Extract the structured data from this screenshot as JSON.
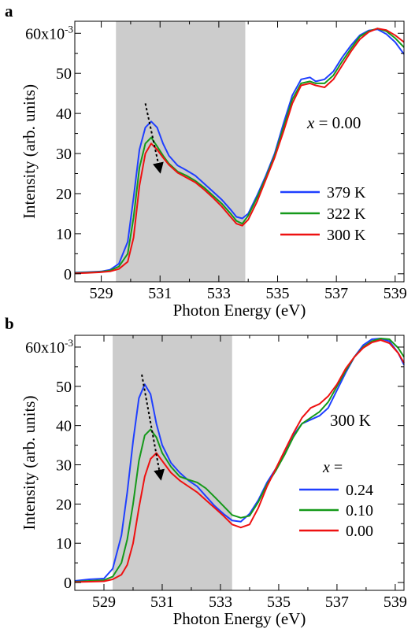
{
  "chart_data": [
    {
      "panel": "a",
      "type": "line",
      "xlabel": "Photon Energy (eV)",
      "ylabel": "Intensity (arb. units)",
      "xlim": [
        528.1,
        539.3
      ],
      "ylim": [
        -0.002,
        0.063
      ],
      "x_ticks": [
        529,
        531,
        533,
        535,
        537,
        539
      ],
      "x_tick_labels": [
        "529",
        "531",
        "533",
        "535",
        "537",
        "539"
      ],
      "y_ticks": [
        0,
        0.01,
        0.02,
        0.03,
        0.04,
        0.05,
        0.06
      ],
      "y_tick_labels": [
        "0",
        "10",
        "20",
        "30",
        "40",
        "50",
        "60x10"
      ],
      "y_exponent": "-3",
      "shaded_region": [
        529.5,
        533.9
      ],
      "annotation": "x = 0.00",
      "arrow": {
        "from": [
          530.5,
          0.0425
        ],
        "to": [
          531.0,
          0.0255
        ]
      },
      "legend": {
        "placement": "right"
      },
      "colors": {
        "379 K": "#1f3fff",
        "322 K": "#15991a",
        "300 K": "#ee1111",
        "shade": "#cccccc"
      },
      "series": [
        {
          "name": "379 K",
          "x": [
            528.1,
            528.5,
            529.0,
            529.3,
            529.6,
            529.9,
            530.1,
            530.3,
            530.5,
            530.7,
            530.9,
            531.1,
            531.3,
            531.6,
            531.9,
            532.2,
            532.5,
            532.8,
            533.1,
            533.4,
            533.6,
            533.8,
            534.0,
            534.3,
            534.6,
            534.9,
            535.2,
            535.5,
            535.8,
            536.1,
            536.3,
            536.6,
            536.9,
            537.2,
            537.5,
            537.8,
            538.1,
            538.4,
            538.7,
            539.0,
            539.3
          ],
          "values": [
            0.0003,
            0.0004,
            0.0006,
            0.001,
            0.0025,
            0.008,
            0.019,
            0.031,
            0.0365,
            0.038,
            0.0365,
            0.0325,
            0.0295,
            0.027,
            0.0258,
            0.0245,
            0.0225,
            0.0205,
            0.0185,
            0.016,
            0.0142,
            0.0138,
            0.015,
            0.0195,
            0.0245,
            0.03,
            0.0375,
            0.0445,
            0.0485,
            0.049,
            0.048,
            0.0485,
            0.0505,
            0.054,
            0.057,
            0.0595,
            0.0607,
            0.061,
            0.0598,
            0.0578,
            0.0548
          ]
        },
        {
          "name": "322 K",
          "x": [
            528.1,
            528.5,
            529.0,
            529.3,
            529.6,
            529.9,
            530.1,
            530.3,
            530.5,
            530.7,
            530.9,
            531.1,
            531.3,
            531.6,
            531.9,
            532.2,
            532.5,
            532.8,
            533.1,
            533.4,
            533.6,
            533.8,
            534.0,
            534.3,
            534.6,
            534.9,
            535.2,
            535.5,
            535.8,
            536.1,
            536.3,
            536.6,
            536.9,
            537.2,
            537.5,
            537.8,
            538.1,
            538.4,
            538.7,
            539.0,
            539.3
          ],
          "values": [
            0.0002,
            0.0003,
            0.0005,
            0.0008,
            0.0018,
            0.005,
            0.014,
            0.0265,
            0.0325,
            0.034,
            0.0318,
            0.0295,
            0.0275,
            0.0255,
            0.0245,
            0.0232,
            0.0215,
            0.0195,
            0.0175,
            0.015,
            0.0132,
            0.0125,
            0.0145,
            0.019,
            0.024,
            0.0295,
            0.0365,
            0.0435,
            0.0475,
            0.048,
            0.0475,
            0.0475,
            0.0495,
            0.053,
            0.0562,
            0.0592,
            0.0605,
            0.0612,
            0.0605,
            0.0588,
            0.0565
          ]
        },
        {
          "name": "300 K",
          "x": [
            528.1,
            528.5,
            529.0,
            529.3,
            529.6,
            529.9,
            530.1,
            530.3,
            530.5,
            530.7,
            530.9,
            531.1,
            531.3,
            531.6,
            531.9,
            532.2,
            532.5,
            532.8,
            533.1,
            533.4,
            533.6,
            533.8,
            534.0,
            534.3,
            534.6,
            534.9,
            535.2,
            535.5,
            535.8,
            536.1,
            536.3,
            536.6,
            536.9,
            537.2,
            537.5,
            537.8,
            538.1,
            538.4,
            538.7,
            539.0,
            539.3
          ],
          "values": [
            0.0001,
            0.0002,
            0.0004,
            0.0006,
            0.0012,
            0.003,
            0.009,
            0.022,
            0.03,
            0.0325,
            0.031,
            0.029,
            0.0272,
            0.0252,
            0.024,
            0.0228,
            0.021,
            0.019,
            0.0168,
            0.0142,
            0.0125,
            0.012,
            0.0135,
            0.018,
            0.0235,
            0.029,
            0.0355,
            0.0425,
            0.047,
            0.0475,
            0.047,
            0.0465,
            0.0485,
            0.052,
            0.0555,
            0.0585,
            0.0603,
            0.0612,
            0.0608,
            0.0595,
            0.0578
          ]
        }
      ]
    },
    {
      "panel": "b",
      "type": "line",
      "xlabel": "Photon Energy (eV)",
      "ylabel": "Intensity (arb. units)",
      "xlim": [
        528.0,
        539.3
      ],
      "ylim": [
        -0.002,
        0.063
      ],
      "x_ticks": [
        529,
        531,
        533,
        535,
        537,
        539
      ],
      "x_tick_labels": [
        "529",
        "531",
        "533",
        "535",
        "537",
        "539"
      ],
      "y_ticks": [
        0,
        0.01,
        0.02,
        0.03,
        0.04,
        0.05,
        0.06
      ],
      "y_tick_labels": [
        "0",
        "10",
        "20",
        "30",
        "40",
        "50",
        "60x10"
      ],
      "y_exponent": "-3",
      "shaded_region": [
        529.3,
        533.4
      ],
      "annotation": "300 K",
      "legend": {
        "title": "x =",
        "placement": "right"
      },
      "arrow": {
        "from": [
          530.3,
          0.053
        ],
        "to": [
          530.95,
          0.0265
        ]
      },
      "colors": {
        "0.24": "#1f3fff",
        "0.10": "#15991a",
        "0.00": "#ee1111",
        "shade": "#cccccc"
      },
      "series": [
        {
          "name": "0.24",
          "x": [
            528.0,
            528.5,
            529.0,
            529.3,
            529.6,
            529.8,
            530.0,
            530.2,
            530.4,
            530.6,
            530.8,
            531.0,
            531.3,
            531.6,
            531.9,
            532.2,
            532.5,
            532.8,
            533.1,
            533.4,
            533.7,
            534.0,
            534.3,
            534.6,
            534.9,
            535.2,
            535.5,
            535.8,
            536.1,
            536.4,
            536.7,
            537.0,
            537.3,
            537.6,
            537.9,
            538.2,
            538.5,
            538.8,
            539.1,
            539.3
          ],
          "values": [
            0.0004,
            0.0008,
            0.001,
            0.0035,
            0.012,
            0.023,
            0.036,
            0.047,
            0.0505,
            0.048,
            0.0405,
            0.035,
            0.0305,
            0.028,
            0.026,
            0.0245,
            0.022,
            0.0195,
            0.0175,
            0.0158,
            0.0155,
            0.0175,
            0.021,
            0.0255,
            0.029,
            0.033,
            0.0375,
            0.0405,
            0.0415,
            0.0425,
            0.0445,
            0.049,
            0.0535,
            0.0575,
            0.0605,
            0.062,
            0.0622,
            0.0615,
            0.0585,
            0.0555
          ]
        },
        {
          "name": "0.10",
          "x": [
            528.0,
            528.5,
            529.0,
            529.3,
            529.6,
            529.8,
            530.0,
            530.2,
            530.4,
            530.6,
            530.8,
            531.0,
            531.3,
            531.6,
            531.9,
            532.2,
            532.5,
            532.8,
            533.1,
            533.4,
            533.7,
            534.0,
            534.3,
            534.6,
            534.9,
            535.2,
            535.5,
            535.8,
            536.1,
            536.4,
            536.7,
            537.0,
            537.3,
            537.6,
            537.9,
            538.2,
            538.5,
            538.8,
            539.1,
            539.3
          ],
          "values": [
            0.0002,
            0.0004,
            0.0006,
            0.0015,
            0.005,
            0.011,
            0.02,
            0.031,
            0.0375,
            0.039,
            0.037,
            0.033,
            0.0295,
            0.027,
            0.0262,
            0.0255,
            0.024,
            0.0218,
            0.0195,
            0.0172,
            0.0165,
            0.017,
            0.0205,
            0.025,
            0.0285,
            0.0325,
            0.037,
            0.0405,
            0.042,
            0.0435,
            0.046,
            0.05,
            0.054,
            0.0575,
            0.06,
            0.0615,
            0.0622,
            0.062,
            0.0598,
            0.0575
          ]
        },
        {
          "name": "0.00",
          "x": [
            528.0,
            528.5,
            529.0,
            529.3,
            529.6,
            529.8,
            530.0,
            530.2,
            530.4,
            530.6,
            530.8,
            531.0,
            531.3,
            531.6,
            531.9,
            532.2,
            532.5,
            532.8,
            533.1,
            533.4,
            533.7,
            534.0,
            534.3,
            534.6,
            534.9,
            535.2,
            535.5,
            535.8,
            536.1,
            536.4,
            536.7,
            537.0,
            537.3,
            537.6,
            537.9,
            538.2,
            538.5,
            538.8,
            539.1,
            539.3
          ],
          "values": [
            0.0001,
            0.0002,
            0.0003,
            0.0008,
            0.002,
            0.0045,
            0.01,
            0.019,
            0.027,
            0.0315,
            0.033,
            0.031,
            0.028,
            0.026,
            0.0245,
            0.023,
            0.021,
            0.019,
            0.017,
            0.0148,
            0.014,
            0.0148,
            0.019,
            0.0245,
            0.029,
            0.0335,
            0.038,
            0.042,
            0.0445,
            0.0455,
            0.0475,
            0.0505,
            0.0545,
            0.0575,
            0.0598,
            0.0612,
            0.0618,
            0.061,
            0.0585,
            0.056
          ]
        }
      ]
    }
  ]
}
